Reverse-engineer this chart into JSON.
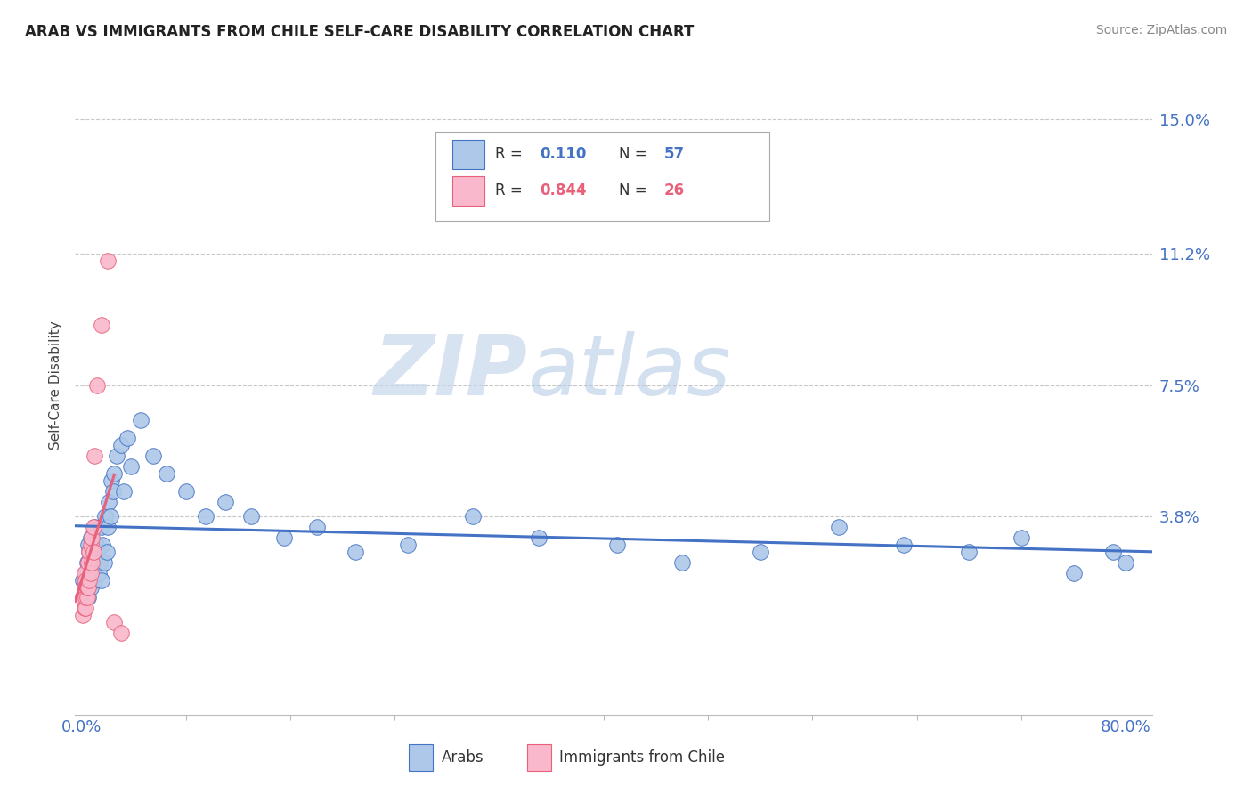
{
  "title": "ARAB VS IMMIGRANTS FROM CHILE SELF-CARE DISABILITY CORRELATION CHART",
  "source": "Source: ZipAtlas.com",
  "ylabel": "Self-Care Disability",
  "ytick_labels": [
    "3.8%",
    "7.5%",
    "11.2%",
    "15.0%"
  ],
  "ytick_values": [
    0.038,
    0.075,
    0.112,
    0.15
  ],
  "xlim": [
    -0.005,
    0.82
  ],
  "ylim": [
    -0.018,
    0.168
  ],
  "arab_R": "0.110",
  "arab_N": "57",
  "chile_R": "0.844",
  "chile_N": "26",
  "arab_color": "#adc8e8",
  "chile_color": "#f9b8cb",
  "arab_line_color": "#4472c4",
  "chile_line_color": "#e8607a",
  "watermark_zip": "ZIP",
  "watermark_atlas": "atlas",
  "background_color": "#ffffff",
  "grid_color": "#c8c8c8",
  "arab_scatter_x": [
    0.001,
    0.002,
    0.003,
    0.004,
    0.005,
    0.005,
    0.006,
    0.007,
    0.007,
    0.008,
    0.009,
    0.01,
    0.01,
    0.011,
    0.012,
    0.013,
    0.014,
    0.015,
    0.015,
    0.016,
    0.017,
    0.018,
    0.019,
    0.02,
    0.021,
    0.022,
    0.023,
    0.024,
    0.025,
    0.027,
    0.03,
    0.032,
    0.035,
    0.038,
    0.045,
    0.055,
    0.065,
    0.08,
    0.095,
    0.11,
    0.13,
    0.155,
    0.18,
    0.21,
    0.25,
    0.3,
    0.35,
    0.41,
    0.46,
    0.52,
    0.58,
    0.63,
    0.68,
    0.72,
    0.76,
    0.79,
    0.8
  ],
  "arab_scatter_y": [
    0.02,
    0.018,
    0.022,
    0.025,
    0.015,
    0.03,
    0.028,
    0.018,
    0.032,
    0.022,
    0.025,
    0.02,
    0.035,
    0.03,
    0.028,
    0.022,
    0.025,
    0.035,
    0.02,
    0.03,
    0.025,
    0.038,
    0.028,
    0.035,
    0.042,
    0.038,
    0.048,
    0.045,
    0.05,
    0.055,
    0.058,
    0.045,
    0.06,
    0.052,
    0.065,
    0.055,
    0.05,
    0.045,
    0.038,
    0.042,
    0.038,
    0.032,
    0.035,
    0.028,
    0.03,
    0.038,
    0.032,
    0.03,
    0.025,
    0.028,
    0.035,
    0.03,
    0.028,
    0.032,
    0.022,
    0.028,
    0.025
  ],
  "chile_scatter_x": [
    0.001,
    0.001,
    0.002,
    0.002,
    0.002,
    0.003,
    0.003,
    0.003,
    0.004,
    0.004,
    0.005,
    0.005,
    0.006,
    0.006,
    0.007,
    0.007,
    0.008,
    0.008,
    0.009,
    0.009,
    0.01,
    0.012,
    0.015,
    0.02,
    0.025,
    0.03
  ],
  "chile_scatter_y": [
    0.01,
    0.015,
    0.012,
    0.018,
    0.022,
    0.012,
    0.015,
    0.02,
    0.015,
    0.018,
    0.018,
    0.025,
    0.02,
    0.028,
    0.022,
    0.03,
    0.025,
    0.032,
    0.028,
    0.035,
    0.055,
    0.075,
    0.092,
    0.11,
    0.008,
    0.005
  ]
}
